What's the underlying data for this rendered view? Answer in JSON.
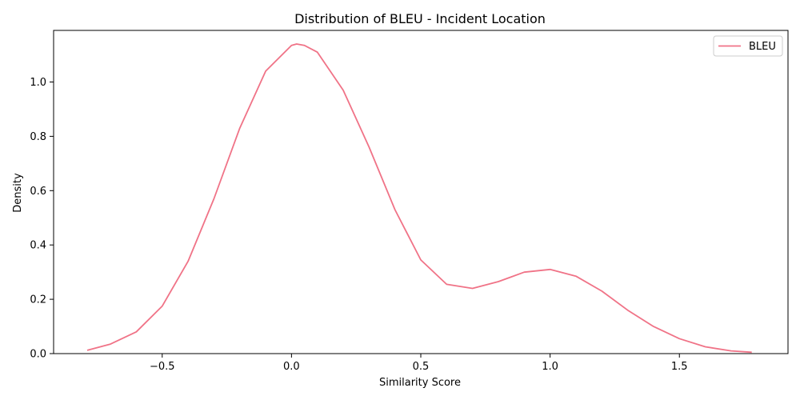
{
  "chart_data": {
    "type": "line",
    "title": "Distribution of BLEU - Incident Location",
    "xlabel": "Similarity Score",
    "ylabel": "Density",
    "xlim": [
      -0.92,
      1.92
    ],
    "ylim": [
      0,
      1.19
    ],
    "xticks": [
      -0.5,
      0.0,
      0.5,
      1.0,
      1.5
    ],
    "xtick_labels": [
      "−0.5",
      "0.0",
      "0.5",
      "1.0",
      "1.5"
    ],
    "yticks": [
      0.0,
      0.2,
      0.4,
      0.6,
      0.8,
      1.0
    ],
    "ytick_labels": [
      "0.0",
      "0.2",
      "0.4",
      "0.6",
      "0.8",
      "1.0"
    ],
    "grid": false,
    "legend": {
      "placement": "top-right"
    },
    "series": [
      {
        "name": "BLEU",
        "color": "#f07387",
        "x": [
          -0.79,
          -0.7,
          -0.6,
          -0.5,
          -0.4,
          -0.3,
          -0.2,
          -0.1,
          0.0,
          0.02,
          0.05,
          0.1,
          0.2,
          0.3,
          0.4,
          0.5,
          0.6,
          0.7,
          0.8,
          0.9,
          1.0,
          1.1,
          1.2,
          1.3,
          1.4,
          1.5,
          1.6,
          1.7,
          1.78
        ],
        "y": [
          0.012,
          0.035,
          0.08,
          0.175,
          0.34,
          0.57,
          0.83,
          1.04,
          1.135,
          1.14,
          1.135,
          1.11,
          0.97,
          0.76,
          0.53,
          0.345,
          0.255,
          0.24,
          0.265,
          0.3,
          0.31,
          0.285,
          0.23,
          0.16,
          0.1,
          0.055,
          0.025,
          0.01,
          0.005
        ]
      }
    ]
  }
}
